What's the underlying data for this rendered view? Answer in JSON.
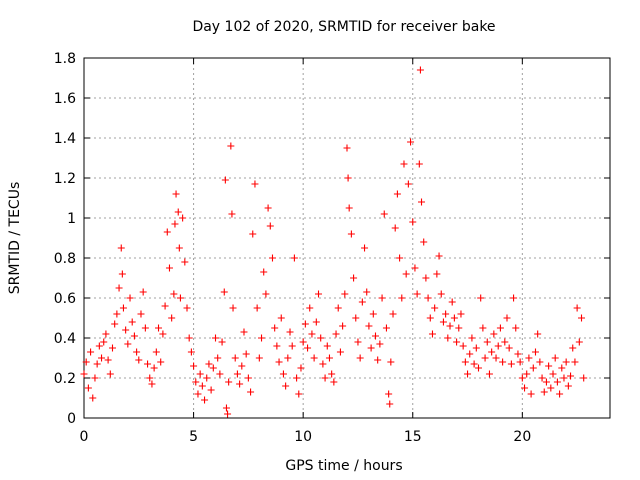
{
  "chart_data": {
    "type": "scatter",
    "title": "Day 102 of 2020, SRMTID for receiver bake",
    "xlabel": "GPS time / hours",
    "ylabel": "SRMTID / TECUs",
    "xlim": [
      0,
      24
    ],
    "ylim": [
      0,
      1.8
    ],
    "xticks": [
      0,
      5,
      10,
      15,
      20
    ],
    "xtick_labels": [
      "0",
      "5",
      "10",
      "15",
      "20"
    ],
    "yticks": [
      0,
      0.2,
      0.4,
      0.6,
      0.8,
      1,
      1.2,
      1.4,
      1.6,
      1.8
    ],
    "ytick_labels": [
      "0",
      "0.2",
      "0.4",
      "0.6",
      "0.8",
      "1",
      "1.2",
      "1.4",
      "1.6",
      "1.8"
    ],
    "grid": true,
    "marker": "+",
    "color": "#ff0000",
    "series": [
      {
        "name": "SRMTID",
        "points": [
          [
            0.0,
            0.22
          ],
          [
            0.1,
            0.28
          ],
          [
            0.2,
            0.15
          ],
          [
            0.3,
            0.33
          ],
          [
            0.4,
            0.1
          ],
          [
            0.5,
            0.2
          ],
          [
            0.6,
            0.27
          ],
          [
            0.7,
            0.36
          ],
          [
            0.8,
            0.3
          ],
          [
            0.9,
            0.38
          ],
          [
            1.0,
            0.42
          ],
          [
            1.1,
            0.29
          ],
          [
            1.2,
            0.22
          ],
          [
            1.3,
            0.35
          ],
          [
            1.4,
            0.47
          ],
          [
            1.5,
            0.52
          ],
          [
            1.6,
            0.65
          ],
          [
            1.7,
            0.85
          ],
          [
            1.75,
            0.72
          ],
          [
            1.8,
            0.55
          ],
          [
            1.9,
            0.44
          ],
          [
            2.0,
            0.37
          ],
          [
            2.1,
            0.6
          ],
          [
            2.2,
            0.48
          ],
          [
            2.3,
            0.41
          ],
          [
            2.4,
            0.33
          ],
          [
            2.5,
            0.29
          ],
          [
            2.6,
            0.52
          ],
          [
            2.7,
            0.63
          ],
          [
            2.8,
            0.45
          ],
          [
            2.9,
            0.27
          ],
          [
            3.0,
            0.2
          ],
          [
            3.1,
            0.17
          ],
          [
            3.2,
            0.25
          ],
          [
            3.3,
            0.33
          ],
          [
            3.4,
            0.45
          ],
          [
            3.5,
            0.28
          ],
          [
            3.6,
            0.42
          ],
          [
            3.7,
            0.56
          ],
          [
            3.8,
            0.93
          ],
          [
            3.9,
            0.75
          ],
          [
            4.0,
            0.5
          ],
          [
            4.1,
            0.62
          ],
          [
            4.15,
            0.97
          ],
          [
            4.2,
            1.12
          ],
          [
            4.3,
            1.03
          ],
          [
            4.35,
            0.85
          ],
          [
            4.4,
            0.6
          ],
          [
            4.5,
            1.0
          ],
          [
            4.6,
            0.78
          ],
          [
            4.7,
            0.55
          ],
          [
            4.8,
            0.4
          ],
          [
            4.9,
            0.33
          ],
          [
            5.0,
            0.26
          ],
          [
            5.1,
            0.18
          ],
          [
            5.2,
            0.12
          ],
          [
            5.3,
            0.22
          ],
          [
            5.4,
            0.16
          ],
          [
            5.5,
            0.09
          ],
          [
            5.6,
            0.2
          ],
          [
            5.7,
            0.27
          ],
          [
            5.8,
            0.14
          ],
          [
            5.9,
            0.25
          ],
          [
            6.0,
            0.4
          ],
          [
            6.1,
            0.3
          ],
          [
            6.2,
            0.22
          ],
          [
            6.3,
            0.38
          ],
          [
            6.4,
            0.63
          ],
          [
            6.45,
            1.19
          ],
          [
            6.5,
            0.05
          ],
          [
            6.55,
            0.02
          ],
          [
            6.6,
            0.18
          ],
          [
            6.7,
            1.36
          ],
          [
            6.75,
            1.02
          ],
          [
            6.8,
            0.55
          ],
          [
            6.9,
            0.3
          ],
          [
            7.0,
            0.22
          ],
          [
            7.1,
            0.17
          ],
          [
            7.2,
            0.26
          ],
          [
            7.3,
            0.43
          ],
          [
            7.4,
            0.32
          ],
          [
            7.5,
            0.2
          ],
          [
            7.6,
            0.13
          ],
          [
            7.7,
            0.92
          ],
          [
            7.8,
            1.17
          ],
          [
            7.9,
            0.55
          ],
          [
            8.0,
            0.3
          ],
          [
            8.1,
            0.4
          ],
          [
            8.2,
            0.73
          ],
          [
            8.3,
            0.62
          ],
          [
            8.4,
            1.05
          ],
          [
            8.5,
            0.96
          ],
          [
            8.6,
            0.8
          ],
          [
            8.7,
            0.45
          ],
          [
            8.8,
            0.36
          ],
          [
            8.9,
            0.28
          ],
          [
            9.0,
            0.5
          ],
          [
            9.1,
            0.22
          ],
          [
            9.2,
            0.16
          ],
          [
            9.3,
            0.3
          ],
          [
            9.4,
            0.43
          ],
          [
            9.5,
            0.36
          ],
          [
            9.6,
            0.8
          ],
          [
            9.7,
            0.2
          ],
          [
            9.8,
            0.12
          ],
          [
            9.9,
            0.25
          ],
          [
            10.0,
            0.38
          ],
          [
            10.1,
            0.47
          ],
          [
            10.2,
            0.35
          ],
          [
            10.3,
            0.55
          ],
          [
            10.4,
            0.42
          ],
          [
            10.5,
            0.3
          ],
          [
            10.6,
            0.48
          ],
          [
            10.7,
            0.62
          ],
          [
            10.8,
            0.4
          ],
          [
            10.9,
            0.27
          ],
          [
            11.0,
            0.2
          ],
          [
            11.1,
            0.36
          ],
          [
            11.2,
            0.3
          ],
          [
            11.3,
            0.22
          ],
          [
            11.4,
            0.18
          ],
          [
            11.5,
            0.42
          ],
          [
            11.6,
            0.55
          ],
          [
            11.7,
            0.33
          ],
          [
            11.8,
            0.46
          ],
          [
            11.9,
            0.62
          ],
          [
            12.0,
            1.35
          ],
          [
            12.05,
            1.2
          ],
          [
            12.1,
            1.05
          ],
          [
            12.2,
            0.92
          ],
          [
            12.3,
            0.7
          ],
          [
            12.4,
            0.5
          ],
          [
            12.5,
            0.38
          ],
          [
            12.6,
            0.3
          ],
          [
            12.7,
            0.58
          ],
          [
            12.8,
            0.85
          ],
          [
            12.9,
            0.63
          ],
          [
            13.0,
            0.46
          ],
          [
            13.1,
            0.35
          ],
          [
            13.2,
            0.52
          ],
          [
            13.3,
            0.41
          ],
          [
            13.4,
            0.29
          ],
          [
            13.5,
            0.37
          ],
          [
            13.6,
            0.6
          ],
          [
            13.7,
            1.02
          ],
          [
            13.8,
            0.45
          ],
          [
            13.9,
            0.12
          ],
          [
            13.95,
            0.07
          ],
          [
            14.0,
            0.28
          ],
          [
            14.1,
            0.52
          ],
          [
            14.2,
            0.95
          ],
          [
            14.3,
            1.12
          ],
          [
            14.4,
            0.8
          ],
          [
            14.5,
            0.6
          ],
          [
            14.6,
            1.27
          ],
          [
            14.7,
            0.72
          ],
          [
            14.8,
            1.17
          ],
          [
            14.9,
            1.38
          ],
          [
            15.0,
            0.98
          ],
          [
            15.1,
            0.75
          ],
          [
            15.2,
            0.62
          ],
          [
            15.3,
            1.27
          ],
          [
            15.35,
            1.74
          ],
          [
            15.4,
            1.08
          ],
          [
            15.5,
            0.88
          ],
          [
            15.6,
            0.7
          ],
          [
            15.7,
            0.6
          ],
          [
            15.8,
            0.5
          ],
          [
            15.9,
            0.42
          ],
          [
            16.0,
            0.55
          ],
          [
            16.1,
            0.72
          ],
          [
            16.2,
            0.81
          ],
          [
            16.3,
            0.62
          ],
          [
            16.4,
            0.48
          ],
          [
            16.5,
            0.52
          ],
          [
            16.6,
            0.4
          ],
          [
            16.7,
            0.46
          ],
          [
            16.8,
            0.58
          ],
          [
            16.9,
            0.5
          ],
          [
            17.0,
            0.38
          ],
          [
            17.1,
            0.45
          ],
          [
            17.2,
            0.52
          ],
          [
            17.3,
            0.36
          ],
          [
            17.4,
            0.28
          ],
          [
            17.5,
            0.22
          ],
          [
            17.6,
            0.32
          ],
          [
            17.7,
            0.4
          ],
          [
            17.8,
            0.27
          ],
          [
            17.9,
            0.35
          ],
          [
            18.0,
            0.25
          ],
          [
            18.1,
            0.6
          ],
          [
            18.2,
            0.45
          ],
          [
            18.3,
            0.3
          ],
          [
            18.4,
            0.38
          ],
          [
            18.5,
            0.22
          ],
          [
            18.6,
            0.33
          ],
          [
            18.7,
            0.42
          ],
          [
            18.8,
            0.3
          ],
          [
            18.9,
            0.36
          ],
          [
            19.0,
            0.45
          ],
          [
            19.1,
            0.28
          ],
          [
            19.2,
            0.38
          ],
          [
            19.3,
            0.5
          ],
          [
            19.4,
            0.35
          ],
          [
            19.5,
            0.27
          ],
          [
            19.6,
            0.6
          ],
          [
            19.7,
            0.45
          ],
          [
            19.8,
            0.32
          ],
          [
            19.9,
            0.28
          ],
          [
            20.0,
            0.2
          ],
          [
            20.1,
            0.15
          ],
          [
            20.2,
            0.22
          ],
          [
            20.3,
            0.3
          ],
          [
            20.4,
            0.12
          ],
          [
            20.5,
            0.25
          ],
          [
            20.6,
            0.33
          ],
          [
            20.7,
            0.42
          ],
          [
            20.8,
            0.28
          ],
          [
            20.9,
            0.2
          ],
          [
            21.0,
            0.13
          ],
          [
            21.1,
            0.18
          ],
          [
            21.2,
            0.26
          ],
          [
            21.3,
            0.15
          ],
          [
            21.4,
            0.22
          ],
          [
            21.5,
            0.3
          ],
          [
            21.6,
            0.18
          ],
          [
            21.7,
            0.12
          ],
          [
            21.8,
            0.25
          ],
          [
            21.9,
            0.2
          ],
          [
            22.0,
            0.28
          ],
          [
            22.1,
            0.16
          ],
          [
            22.2,
            0.21
          ],
          [
            22.3,
            0.35
          ],
          [
            22.4,
            0.28
          ],
          [
            22.5,
            0.55
          ],
          [
            22.6,
            0.38
          ],
          [
            22.7,
            0.5
          ],
          [
            22.8,
            0.2
          ]
        ]
      }
    ]
  }
}
